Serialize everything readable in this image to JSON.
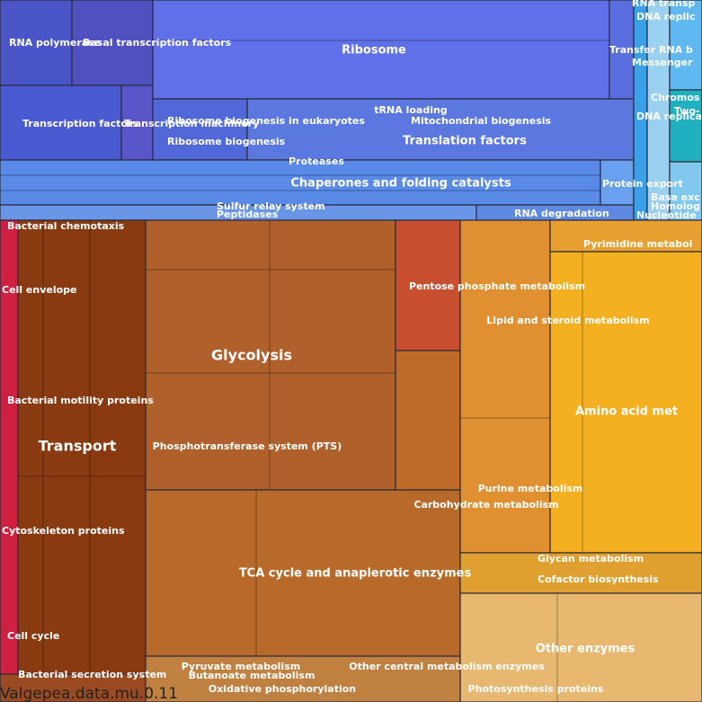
{
  "title": "Valgepea.data.mu.0.11",
  "labels": [
    "RNA polymerase",
    "Basal transcription factors",
    "Ribosome",
    "tRNA loading",
    "Transcription factors",
    "Transcription machinery",
    "Ribosome biogenesis in eukaryotes",
    "Mitochondrial biogenesis",
    "Ribosome biogenesis",
    "Translation factors",
    "Proteases",
    "Chaperones and folding catalysts",
    "Sulfur relay system",
    "Peptidases",
    "RNA degradation",
    "Protein export",
    "RNA transp",
    "DNA replic",
    "Transfer RNA b",
    "Messenger",
    "Chromos",
    "Two-",
    "DNA replica",
    "Base exc",
    "Homolog",
    "Nucleotide",
    "Bacterial chemotaxis",
    "Cell envelope",
    "Bacterial motility proteins",
    "Transport",
    "Cytoskeleton proteins",
    "Cell cycle",
    "Bacterial secretion system",
    "Glycolysis",
    "Phosphotransferase system (PTS)",
    "TCA cycle and anaplerotic enzymes",
    "Pentose phosphate metabolism",
    "Lipid and steroid metabolism",
    "Amino acid met",
    "Pyrimidine metabol",
    "Purine metabolism",
    "Carbohydrate metabolism",
    "Glycan metabolism",
    "Cofactor biosynthesis",
    "Other enzymes",
    "Pyruvate metabolism",
    "Other central metabolism enzymes",
    "Butanoate metabolism",
    "Oxidative phosphorylation",
    "Photosynthesis proteins"
  ]
}
